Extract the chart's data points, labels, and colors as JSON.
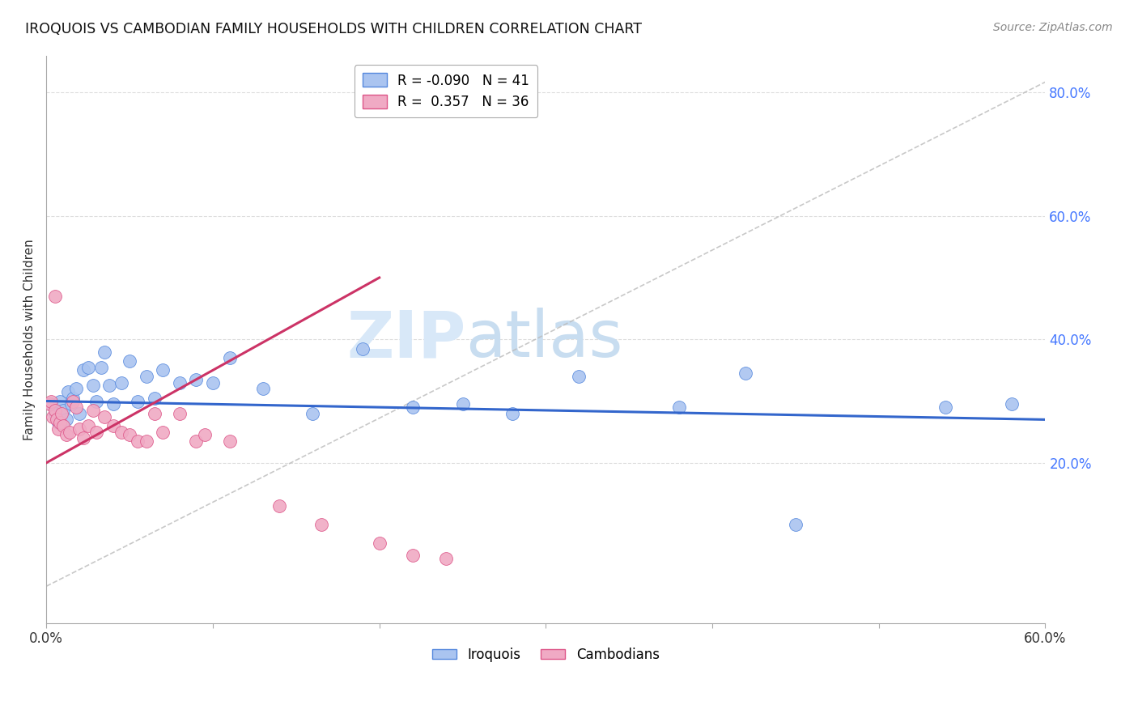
{
  "title": "IROQUOIS VS CAMBODIAN FAMILY HOUSEHOLDS WITH CHILDREN CORRELATION CHART",
  "source": "Source: ZipAtlas.com",
  "ylabel": "Family Households with Children",
  "legend_label1": "Iroquois",
  "legend_label2": "Cambodians",
  "R1": -0.09,
  "N1": 41,
  "R2": 0.357,
  "N2": 36,
  "color_iroquois": "#aac4f0",
  "color_cambodians": "#f0aac4",
  "color_edge_iroquois": "#5588dd",
  "color_edge_cambodians": "#dd5588",
  "color_line_iroquois": "#3366cc",
  "color_line_cambodians": "#cc3366",
  "color_diagonal": "#bbbbbb",
  "color_tick_right": "#4477ff",
  "color_grid": "#dddddd",
  "xmin": 0.0,
  "xmax": 0.6,
  "ymin": -0.06,
  "ymax": 0.86,
  "yticks": [
    0.2,
    0.4,
    0.6,
    0.8
  ],
  "xticks_minor": [
    0.0,
    0.1,
    0.2,
    0.3,
    0.4,
    0.5,
    0.6
  ],
  "iroquois_x": [
    0.003,
    0.005,
    0.007,
    0.008,
    0.01,
    0.012,
    0.013,
    0.015,
    0.016,
    0.018,
    0.02,
    0.022,
    0.025,
    0.028,
    0.03,
    0.033,
    0.035,
    0.038,
    0.04,
    0.045,
    0.05,
    0.055,
    0.06,
    0.065,
    0.07,
    0.08,
    0.09,
    0.1,
    0.11,
    0.13,
    0.16,
    0.19,
    0.22,
    0.25,
    0.28,
    0.32,
    0.38,
    0.42,
    0.45,
    0.54,
    0.58
  ],
  "iroquois_y": [
    0.295,
    0.28,
    0.265,
    0.3,
    0.285,
    0.27,
    0.315,
    0.295,
    0.305,
    0.32,
    0.28,
    0.35,
    0.355,
    0.325,
    0.3,
    0.355,
    0.38,
    0.325,
    0.295,
    0.33,
    0.365,
    0.3,
    0.34,
    0.305,
    0.35,
    0.33,
    0.335,
    0.33,
    0.37,
    0.32,
    0.28,
    0.385,
    0.29,
    0.295,
    0.28,
    0.34,
    0.29,
    0.345,
    0.1,
    0.29,
    0.295
  ],
  "cambodians_x": [
    0.002,
    0.003,
    0.004,
    0.005,
    0.006,
    0.007,
    0.008,
    0.009,
    0.01,
    0.012,
    0.014,
    0.016,
    0.018,
    0.02,
    0.022,
    0.025,
    0.028,
    0.03,
    0.035,
    0.04,
    0.045,
    0.05,
    0.055,
    0.06,
    0.065,
    0.07,
    0.08,
    0.09,
    0.095,
    0.11,
    0.14,
    0.165,
    0.2,
    0.22,
    0.24,
    0.005
  ],
  "cambodians_y": [
    0.295,
    0.3,
    0.275,
    0.285,
    0.27,
    0.255,
    0.265,
    0.28,
    0.26,
    0.245,
    0.25,
    0.3,
    0.29,
    0.255,
    0.24,
    0.26,
    0.285,
    0.25,
    0.275,
    0.26,
    0.25,
    0.245,
    0.235,
    0.235,
    0.28,
    0.25,
    0.28,
    0.235,
    0.245,
    0.235,
    0.13,
    0.1,
    0.07,
    0.05,
    0.045,
    0.47
  ],
  "watermark_zip": "ZIP",
  "watermark_atlas": "atlas",
  "watermark_color": "#d8e8f8",
  "figsize": [
    14.06,
    8.92
  ],
  "dpi": 100
}
